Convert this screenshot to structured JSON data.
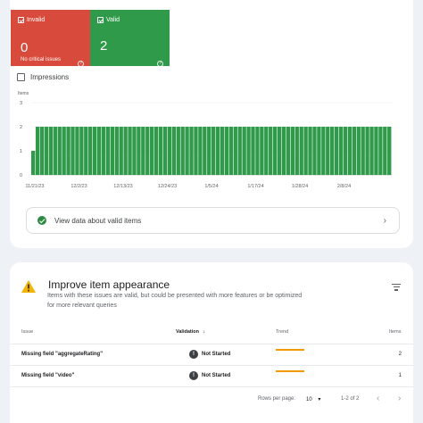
{
  "tiles": {
    "invalid": {
      "label": "Invalid",
      "count": "0",
      "subtitle": "No critical issues",
      "color": "#d84a3b"
    },
    "valid": {
      "label": "Valid",
      "count": "2",
      "color": "#2f9a49"
    }
  },
  "impressions": {
    "label": "Impressions",
    "checked": false
  },
  "chart_data": {
    "type": "bar",
    "ylabel": "Items",
    "ylim": [
      0,
      3
    ],
    "yticks": [
      "3",
      "2",
      "1",
      "0"
    ],
    "xticks": [
      "11/21/23",
      "12/2/23",
      "12/13/23",
      "12/24/23",
      "1/5/24",
      "1/17/24",
      "1/28/24",
      "2/8/24"
    ],
    "values": [
      1,
      2,
      2,
      2,
      2,
      2,
      2,
      2,
      2,
      2,
      2,
      2,
      2,
      2,
      2,
      2,
      2,
      2,
      2,
      2,
      2,
      2,
      2,
      2,
      2,
      2,
      2,
      2,
      2,
      2,
      2,
      2,
      2,
      2,
      2,
      2,
      2,
      2,
      2,
      2,
      2,
      2,
      2,
      2,
      2,
      2,
      2,
      2,
      2,
      2,
      2,
      2,
      2,
      2,
      2,
      2,
      2,
      2,
      2,
      2,
      2,
      2,
      2,
      2,
      2,
      2,
      2,
      2,
      2,
      2,
      2,
      2,
      2,
      2,
      2,
      2,
      2,
      2,
      2,
      2,
      2,
      2
    ],
    "color": "#2f9a49"
  },
  "valid_link": {
    "label": "View data about valid items"
  },
  "improve": {
    "title": "Improve item appearance",
    "description": "Items with these issues are valid, but could be presented with more features or be optimized for more relevant queries"
  },
  "table": {
    "headers": {
      "issue": "Issue",
      "validation": "Validation",
      "trend": "Trend",
      "items": "Items"
    },
    "rows": [
      {
        "issue": "Missing field \"aggregateRating\"",
        "validation": "Not Started",
        "items": "2"
      },
      {
        "issue": "Missing field \"video\"",
        "validation": "Not Started",
        "items": "1"
      }
    ]
  },
  "pagination": {
    "rows_label": "Rows per page:",
    "rows_value": "10",
    "range": "1-2 of 2"
  },
  "colors": {
    "trend": "#f29900",
    "accent_warning": "#f4b400"
  }
}
